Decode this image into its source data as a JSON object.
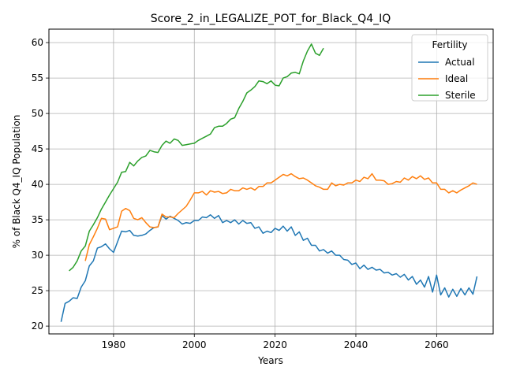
{
  "chart_data": {
    "type": "line",
    "title": "Score_2_in_LEGALIZE_POT_for_Black_Q4_IQ",
    "xlabel": "Years",
    "ylabel": "% of Black Q4_IQ Population",
    "xlim": [
      1964,
      2074
    ],
    "ylim": [
      18.9,
      61.9
    ],
    "xticks": [
      1980,
      2000,
      2020,
      2040,
      2060
    ],
    "yticks": [
      20,
      25,
      30,
      35,
      40,
      45,
      50,
      55,
      60
    ],
    "grid": true,
    "legend": {
      "title": "Fertility",
      "position": "top-right"
    },
    "series": [
      {
        "name": "Actual",
        "color": "#1f77b4",
        "x_start": 1967,
        "values": [
          20.6,
          23.2,
          23.5,
          24.0,
          23.9,
          25.5,
          26.4,
          28.5,
          29.2,
          31.0,
          31.2,
          31.6,
          30.9,
          30.4,
          31.9,
          33.4,
          33.3,
          33.5,
          32.8,
          32.7,
          32.8,
          33.0,
          33.5,
          33.9,
          34.0,
          35.6,
          35.1,
          35.5,
          35.2,
          34.9,
          34.4,
          34.6,
          34.5,
          34.9,
          34.9,
          35.4,
          35.3,
          35.7,
          35.2,
          35.6,
          34.6,
          34.9,
          34.6,
          35.0,
          34.4,
          34.9,
          34.5,
          34.6,
          33.8,
          34.0,
          33.1,
          33.4,
          33.2,
          33.8,
          33.5,
          34.1,
          33.4,
          34.0,
          32.8,
          33.3,
          32.1,
          32.4,
          31.4,
          31.4,
          30.6,
          30.8,
          30.3,
          30.6,
          30.0,
          30.0,
          29.4,
          29.3,
          28.7,
          28.9,
          28.1,
          28.6,
          28.0,
          28.3,
          27.9,
          28.0,
          27.5,
          27.6,
          27.2,
          27.4,
          26.9,
          27.3,
          26.5,
          27.0,
          25.9,
          26.5,
          25.5,
          27.0,
          24.8,
          27.2,
          24.4,
          25.4,
          24.1,
          25.2,
          24.2,
          25.3,
          24.4,
          25.4,
          24.5,
          27.0
        ]
      },
      {
        "name": "Ideal",
        "color": "#ff7f0e",
        "x_start": 1973,
        "values": [
          29.2,
          31.5,
          32.6,
          33.8,
          35.2,
          35.1,
          33.6,
          33.8,
          34.0,
          36.2,
          36.6,
          36.3,
          35.2,
          35.0,
          35.3,
          34.6,
          34.0,
          33.9,
          34.0,
          35.8,
          35.4,
          35.4,
          35.3,
          35.9,
          36.4,
          36.9,
          37.8,
          38.8,
          38.8,
          39.0,
          38.5,
          39.1,
          38.9,
          39.0,
          38.7,
          38.8,
          39.3,
          39.1,
          39.1,
          39.5,
          39.3,
          39.5,
          39.2,
          39.7,
          39.7,
          40.2,
          40.2,
          40.6,
          41.0,
          41.4,
          41.2,
          41.5,
          41.1,
          40.8,
          40.9,
          40.6,
          40.2,
          39.8,
          39.6,
          39.3,
          39.3,
          40.2,
          39.8,
          40.0,
          39.9,
          40.2,
          40.2,
          40.6,
          40.4,
          41.0,
          40.8,
          41.5,
          40.6,
          40.6,
          40.5,
          40.0,
          40.1,
          40.4,
          40.3,
          40.9,
          40.6,
          41.1,
          40.8,
          41.2,
          40.7,
          40.9,
          40.2,
          40.2,
          39.3,
          39.3,
          38.8,
          39.1,
          38.8,
          39.2,
          39.5,
          39.8,
          40.2,
          40.0
        ]
      },
      {
        "name": "Sterile",
        "color": "#2ca02c",
        "x_start": 1969,
        "values": [
          27.8,
          28.3,
          29.2,
          30.6,
          31.3,
          33.4,
          34.3,
          35.3,
          36.5,
          37.5,
          38.5,
          39.4,
          40.3,
          41.7,
          41.8,
          43.1,
          42.6,
          43.3,
          43.8,
          44.0,
          44.8,
          44.6,
          44.5,
          45.5,
          46.1,
          45.8,
          46.4,
          46.2,
          45.5,
          45.6,
          45.7,
          45.8,
          46.2,
          46.5,
          46.8,
          47.1,
          48.0,
          48.2,
          48.2,
          48.6,
          49.2,
          49.4,
          50.7,
          51.7,
          52.9,
          53.3,
          53.8,
          54.6,
          54.5,
          54.2,
          54.6,
          54.0,
          53.9,
          55.0,
          55.2,
          55.7,
          55.8,
          55.6,
          57.4,
          58.8,
          59.8,
          58.5,
          58.2,
          59.2
        ]
      }
    ]
  }
}
